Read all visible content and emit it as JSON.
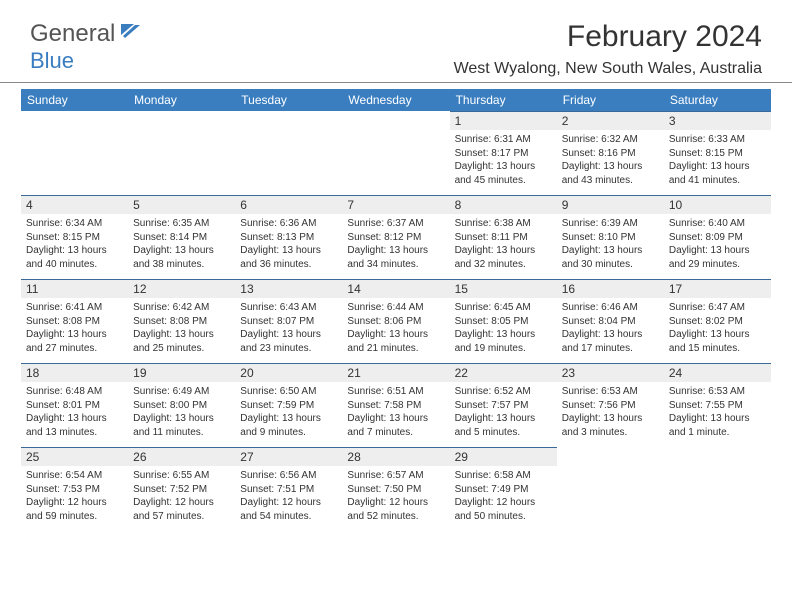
{
  "brand": {
    "text1": "General",
    "text2": "Blue"
  },
  "header": {
    "title": "February 2024",
    "location": "West Wyalong, New South Wales, Australia"
  },
  "colors": {
    "header_bg": "#3a7ec0",
    "header_fg": "#ffffff",
    "daynum_bg": "#eeeeee",
    "daynum_border": "#3a6a9a"
  },
  "weekdays": [
    "Sunday",
    "Monday",
    "Tuesday",
    "Wednesday",
    "Thursday",
    "Friday",
    "Saturday"
  ],
  "weeks": [
    [
      null,
      null,
      null,
      null,
      {
        "n": "1",
        "sr": "6:31 AM",
        "ss": "8:17 PM",
        "dl": "13 hours and 45 minutes."
      },
      {
        "n": "2",
        "sr": "6:32 AM",
        "ss": "8:16 PM",
        "dl": "13 hours and 43 minutes."
      },
      {
        "n": "3",
        "sr": "6:33 AM",
        "ss": "8:15 PM",
        "dl": "13 hours and 41 minutes."
      }
    ],
    [
      {
        "n": "4",
        "sr": "6:34 AM",
        "ss": "8:15 PM",
        "dl": "13 hours and 40 minutes."
      },
      {
        "n": "5",
        "sr": "6:35 AM",
        "ss": "8:14 PM",
        "dl": "13 hours and 38 minutes."
      },
      {
        "n": "6",
        "sr": "6:36 AM",
        "ss": "8:13 PM",
        "dl": "13 hours and 36 minutes."
      },
      {
        "n": "7",
        "sr": "6:37 AM",
        "ss": "8:12 PM",
        "dl": "13 hours and 34 minutes."
      },
      {
        "n": "8",
        "sr": "6:38 AM",
        "ss": "8:11 PM",
        "dl": "13 hours and 32 minutes."
      },
      {
        "n": "9",
        "sr": "6:39 AM",
        "ss": "8:10 PM",
        "dl": "13 hours and 30 minutes."
      },
      {
        "n": "10",
        "sr": "6:40 AM",
        "ss": "8:09 PM",
        "dl": "13 hours and 29 minutes."
      }
    ],
    [
      {
        "n": "11",
        "sr": "6:41 AM",
        "ss": "8:08 PM",
        "dl": "13 hours and 27 minutes."
      },
      {
        "n": "12",
        "sr": "6:42 AM",
        "ss": "8:08 PM",
        "dl": "13 hours and 25 minutes."
      },
      {
        "n": "13",
        "sr": "6:43 AM",
        "ss": "8:07 PM",
        "dl": "13 hours and 23 minutes."
      },
      {
        "n": "14",
        "sr": "6:44 AM",
        "ss": "8:06 PM",
        "dl": "13 hours and 21 minutes."
      },
      {
        "n": "15",
        "sr": "6:45 AM",
        "ss": "8:05 PM",
        "dl": "13 hours and 19 minutes."
      },
      {
        "n": "16",
        "sr": "6:46 AM",
        "ss": "8:04 PM",
        "dl": "13 hours and 17 minutes."
      },
      {
        "n": "17",
        "sr": "6:47 AM",
        "ss": "8:02 PM",
        "dl": "13 hours and 15 minutes."
      }
    ],
    [
      {
        "n": "18",
        "sr": "6:48 AM",
        "ss": "8:01 PM",
        "dl": "13 hours and 13 minutes."
      },
      {
        "n": "19",
        "sr": "6:49 AM",
        "ss": "8:00 PM",
        "dl": "13 hours and 11 minutes."
      },
      {
        "n": "20",
        "sr": "6:50 AM",
        "ss": "7:59 PM",
        "dl": "13 hours and 9 minutes."
      },
      {
        "n": "21",
        "sr": "6:51 AM",
        "ss": "7:58 PM",
        "dl": "13 hours and 7 minutes."
      },
      {
        "n": "22",
        "sr": "6:52 AM",
        "ss": "7:57 PM",
        "dl": "13 hours and 5 minutes."
      },
      {
        "n": "23",
        "sr": "6:53 AM",
        "ss": "7:56 PM",
        "dl": "13 hours and 3 minutes."
      },
      {
        "n": "24",
        "sr": "6:53 AM",
        "ss": "7:55 PM",
        "dl": "13 hours and 1 minute."
      }
    ],
    [
      {
        "n": "25",
        "sr": "6:54 AM",
        "ss": "7:53 PM",
        "dl": "12 hours and 59 minutes."
      },
      {
        "n": "26",
        "sr": "6:55 AM",
        "ss": "7:52 PM",
        "dl": "12 hours and 57 minutes."
      },
      {
        "n": "27",
        "sr": "6:56 AM",
        "ss": "7:51 PM",
        "dl": "12 hours and 54 minutes."
      },
      {
        "n": "28",
        "sr": "6:57 AM",
        "ss": "7:50 PM",
        "dl": "12 hours and 52 minutes."
      },
      {
        "n": "29",
        "sr": "6:58 AM",
        "ss": "7:49 PM",
        "dl": "12 hours and 50 minutes."
      },
      null,
      null
    ]
  ],
  "labels": {
    "sunrise": "Sunrise: ",
    "sunset": "Sunset: ",
    "daylight": "Daylight: "
  }
}
